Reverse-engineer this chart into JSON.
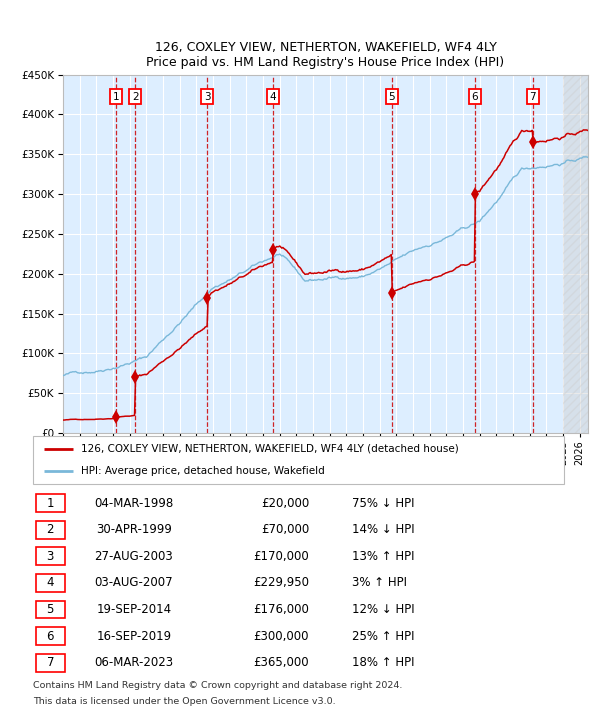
{
  "title1": "126, COXLEY VIEW, NETHERTON, WAKEFIELD, WF4 4LY",
  "title2": "Price paid vs. HM Land Registry's House Price Index (HPI)",
  "sale_dates_num": [
    1998.17,
    1999.33,
    2003.65,
    2007.59,
    2014.72,
    2019.71,
    2023.18
  ],
  "sale_prices": [
    20000,
    70000,
    170000,
    229950,
    176000,
    300000,
    365000
  ],
  "sale_labels": [
    "1",
    "2",
    "3",
    "4",
    "5",
    "6",
    "7"
  ],
  "sale_info": [
    {
      "num": "1",
      "date": "04-MAR-1998",
      "price": "£20,000",
      "pct": "75%",
      "dir": "↓",
      "rel": "HPI"
    },
    {
      "num": "2",
      "date": "30-APR-1999",
      "price": "£70,000",
      "pct": "14%",
      "dir": "↓",
      "rel": "HPI"
    },
    {
      "num": "3",
      "date": "27-AUG-2003",
      "price": "£170,000",
      "pct": "13%",
      "dir": "↑",
      "rel": "HPI"
    },
    {
      "num": "4",
      "date": "03-AUG-2007",
      "price": "£229,950",
      "pct": "3%",
      "dir": "↑",
      "rel": "HPI"
    },
    {
      "num": "5",
      "date": "19-SEP-2014",
      "price": "£176,000",
      "pct": "12%",
      "dir": "↓",
      "rel": "HPI"
    },
    {
      "num": "6",
      "date": "16-SEP-2019",
      "price": "£300,000",
      "pct": "25%",
      "dir": "↑",
      "rel": "HPI"
    },
    {
      "num": "7",
      "date": "06-MAR-2023",
      "price": "£365,000",
      "pct": "18%",
      "dir": "↑",
      "rel": "HPI"
    }
  ],
  "legend_line1": "126, COXLEY VIEW, NETHERTON, WAKEFIELD, WF4 4LY (detached house)",
  "legend_line2": "HPI: Average price, detached house, Wakefield",
  "footer1": "Contains HM Land Registry data © Crown copyright and database right 2024.",
  "footer2": "This data is licensed under the Open Government Licence v3.0.",
  "hpi_color": "#7ab8d9",
  "price_color": "#cc0000",
  "bg_color": "#ddeeff",
  "grid_color": "#ffffff",
  "dashed_color": "#cc0000",
  "ylim": [
    0,
    450000
  ],
  "xlim_start": 1995.0,
  "xlim_end": 2026.5,
  "hatch_start": 2025.0
}
